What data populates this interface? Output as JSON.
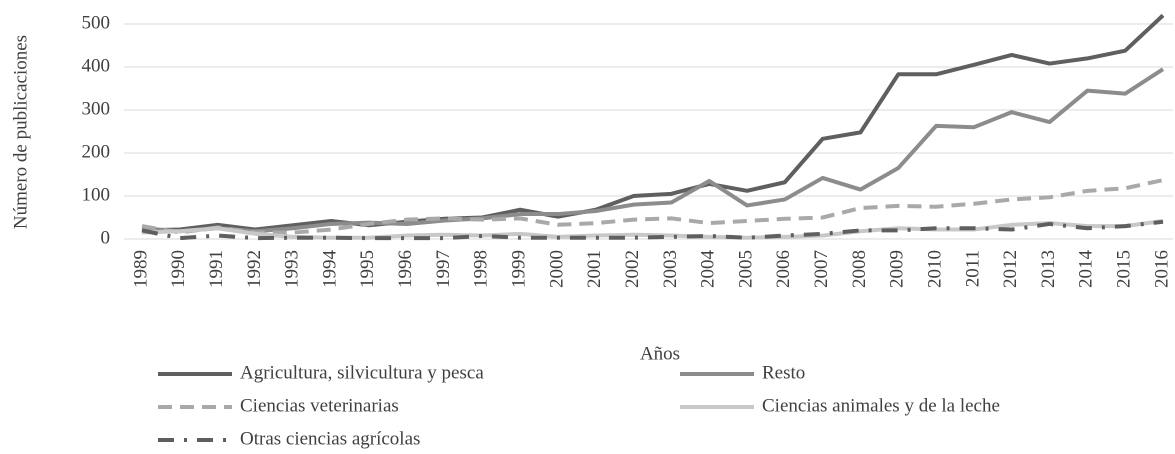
{
  "chart_data": {
    "type": "line",
    "x_label": "Años",
    "y_label": "Número de publicaciones",
    "categories": [
      "1989",
      "1990",
      "1991",
      "1992",
      "1993",
      "1994",
      "1995",
      "1996",
      "1997",
      "1998",
      "1999",
      "2000",
      "2001",
      "2002",
      "2003",
      "2004",
      "2005",
      "2006",
      "2007",
      "2008",
      "2009",
      "2010",
      "2011",
      "2012",
      "2013",
      "2014",
      "2015",
      "2016"
    ],
    "ylim": [
      0,
      500
    ],
    "yticks": [
      0,
      100,
      200,
      300,
      400,
      500
    ],
    "grid": true,
    "series": [
      {
        "name": "Agricultura, silvicultura y pesca",
        "color": "#5f5f5f",
        "style": "solid",
        "values": [
          20,
          22,
          33,
          22,
          32,
          42,
          32,
          40,
          47,
          50,
          68,
          52,
          68,
          100,
          105,
          128,
          112,
          132,
          233,
          248,
          383,
          383,
          405,
          428,
          408,
          420,
          438,
          520
        ]
      },
      {
        "name": "Resto",
        "color": "#8c8c8c",
        "style": "solid",
        "values": [
          25,
          18,
          25,
          18,
          25,
          35,
          38,
          35,
          43,
          48,
          58,
          58,
          65,
          80,
          85,
          135,
          78,
          92,
          142,
          115,
          165,
          263,
          260,
          295,
          272,
          345,
          338,
          395
        ]
      },
      {
        "name": "Ciencias veterinarias",
        "color": "#a9a9a9",
        "style": "dashed",
        "values": [
          30,
          15,
          27,
          15,
          15,
          22,
          35,
          45,
          48,
          45,
          48,
          33,
          37,
          45,
          48,
          37,
          42,
          47,
          50,
          72,
          77,
          75,
          82,
          92,
          97,
          112,
          118,
          137
        ]
      },
      {
        "name": "Ciencias animales y de la leche",
        "color": "#c8c8c8",
        "style": "solid",
        "values": [
          15,
          18,
          25,
          12,
          5,
          3,
          3,
          8,
          10,
          8,
          12,
          5,
          8,
          10,
          8,
          5,
          3,
          5,
          8,
          18,
          25,
          22,
          22,
          33,
          37,
          30,
          30,
          42
        ]
      },
      {
        "name": "Otras ciencias agrícolas",
        "color": "#5f5f5f",
        "style": "dashdot",
        "values": [
          20,
          2,
          8,
          2,
          3,
          3,
          2,
          2,
          2,
          7,
          3,
          3,
          3,
          3,
          5,
          7,
          3,
          8,
          12,
          20,
          20,
          25,
          25,
          22,
          35,
          25,
          30,
          40
        ]
      }
    ]
  }
}
